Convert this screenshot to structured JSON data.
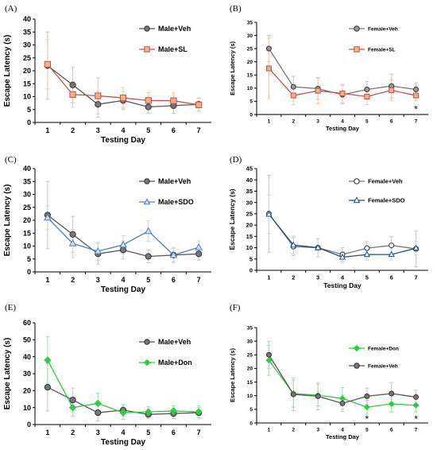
{
  "chart_data": [
    {
      "id": "A",
      "type": "line",
      "panel_label": "(A)",
      "xlabel": "Testing Day",
      "ylabel": "Escape Latency (s)",
      "x": [
        1,
        2,
        3,
        4,
        5,
        6,
        7
      ],
      "ylim": [
        0,
        40
      ],
      "yticks": [
        0,
        5,
        10,
        15,
        20,
        25,
        30,
        35,
        40
      ],
      "legend_position": "right",
      "series": [
        {
          "name": "Male+Veh",
          "marker": "circle",
          "color": "#555555",
          "fill": "#777777",
          "values": [
            22.0,
            14.5,
            7.0,
            8.5,
            6.0,
            6.5,
            7.0
          ],
          "errors": [
            13.0,
            7.0,
            5.0,
            3.5,
            2.5,
            3.0,
            2.5
          ]
        },
        {
          "name": "Male+SL",
          "marker": "square",
          "color": "#c0504d",
          "fill": "#f4b183",
          "values": [
            22.5,
            10.8,
            10.3,
            9.5,
            8.5,
            8.4,
            6.8
          ],
          "errors": [
            9.5,
            5.0,
            7.0,
            4.0,
            3.0,
            3.0,
            2.5
          ]
        }
      ],
      "annotations": []
    },
    {
      "id": "B",
      "type": "line",
      "panel_label": "(B)",
      "xlabel": "Testing Day",
      "ylabel": "Escape Latency (s)",
      "x": [
        1,
        2,
        3,
        4,
        5,
        6,
        7
      ],
      "ylim": [
        0,
        35
      ],
      "yticks": [
        0,
        5,
        10,
        15,
        20,
        25,
        30,
        35
      ],
      "legend_position": "top-right",
      "series": [
        {
          "name": "Female+Veh",
          "marker": "circle",
          "color": "#777777",
          "fill": "#999999",
          "values": [
            25.0,
            10.5,
            9.8,
            7.5,
            9.5,
            10.8,
            9.5
          ],
          "errors": [
            5.0,
            4.0,
            4.0,
            3.5,
            3.0,
            4.5,
            2.5
          ]
        },
        {
          "name": "Female+SL",
          "marker": "square",
          "color": "#c0504d",
          "fill": "#f4b183",
          "values": [
            17.5,
            7.2,
            9.0,
            8.0,
            6.8,
            9.2,
            7.2
          ],
          "errors": [
            11.5,
            3.5,
            5.0,
            3.5,
            3.0,
            4.0,
            2.0
          ]
        }
      ],
      "annotations": [
        {
          "text": "*",
          "x": 7,
          "y": 2.2
        }
      ]
    },
    {
      "id": "C",
      "type": "line",
      "panel_label": "(C)",
      "xlabel": "Testing Day",
      "ylabel": "Escape Latency (s)",
      "x": [
        1,
        2,
        3,
        4,
        5,
        6,
        7
      ],
      "ylim": [
        0,
        40
      ],
      "yticks": [
        0,
        5,
        10,
        15,
        20,
        25,
        30,
        35,
        40
      ],
      "legend_position": "right",
      "series": [
        {
          "name": "Male+Veh",
          "marker": "circle",
          "color": "#555555",
          "fill": "#777777",
          "values": [
            22.0,
            14.5,
            7.0,
            8.5,
            6.0,
            6.5,
            7.0
          ],
          "errors": [
            13.0,
            7.0,
            4.0,
            3.5,
            2.5,
            2.5,
            2.5
          ]
        },
        {
          "name": "Male+SDO",
          "marker": "triangle",
          "color": "#4f81bd",
          "fill": "#cfe0f3",
          "values": [
            21.0,
            11.0,
            8.0,
            10.5,
            15.8,
            6.5,
            9.5
          ],
          "errors": [
            4.5,
            5.5,
            3.5,
            3.5,
            4.0,
            3.0,
            2.5
          ]
        }
      ],
      "annotations": []
    },
    {
      "id": "D",
      "type": "line",
      "panel_label": "(D)",
      "xlabel": "Testing Day",
      "ylabel": "Escape Latency (s)",
      "x": [
        1,
        2,
        3,
        4,
        5,
        6,
        7
      ],
      "ylim": [
        0,
        45
      ],
      "yticks": [
        0,
        5,
        10,
        15,
        20,
        25,
        30,
        35,
        40,
        45
      ],
      "legend_position": "right",
      "series": [
        {
          "name": "Female+Veh",
          "marker": "circle",
          "color": "#777777",
          "fill": "#ffffff",
          "values": [
            25.0,
            10.5,
            10.0,
            7.0,
            9.8,
            11.0,
            9.5
          ],
          "errors": [
            17.0,
            4.0,
            4.0,
            3.0,
            3.0,
            4.0,
            8.0
          ]
        },
        {
          "name": "Female+SDO",
          "marker": "triangle",
          "color": "#1f4e79",
          "fill": "#ffffff",
          "values": [
            24.8,
            11.2,
            10.0,
            5.8,
            7.0,
            7.0,
            9.8
          ],
          "errors": [
            8.5,
            4.0,
            4.0,
            2.5,
            2.5,
            2.5,
            3.0
          ]
        }
      ],
      "annotations": []
    },
    {
      "id": "E",
      "type": "line",
      "panel_label": "(E)",
      "xlabel": "Testing Day",
      "ylabel": "Escape Latency (s)",
      "x": [
        1,
        2,
        3,
        4,
        5,
        6,
        7
      ],
      "ylim": [
        0,
        60
      ],
      "yticks": [
        0,
        10,
        20,
        30,
        40,
        50,
        60
      ],
      "legend_position": "right",
      "series": [
        {
          "name": "Male+Veh",
          "marker": "circle",
          "color": "#555555",
          "fill": "#777777",
          "values": [
            22.0,
            14.5,
            7.0,
            8.5,
            6.0,
            6.5,
            7.0
          ],
          "errors": [
            14.0,
            7.0,
            5.0,
            3.5,
            2.5,
            3.0,
            3.0
          ]
        },
        {
          "name": "Male+Don",
          "marker": "diamond",
          "color": "#2ecc40",
          "fill": "#2ecc40",
          "values": [
            38.0,
            10.0,
            12.5,
            7.0,
            7.5,
            8.0,
            7.5
          ],
          "errors": [
            14.0,
            5.0,
            6.0,
            4.0,
            3.0,
            3.0,
            3.5
          ]
        }
      ],
      "annotations": []
    },
    {
      "id": "F",
      "type": "line",
      "panel_label": "(F)",
      "xlabel": "Testing Day",
      "ylabel": "Escape Latency (s)",
      "x": [
        1,
        2,
        3,
        4,
        5,
        6,
        7
      ],
      "ylim": [
        0,
        35
      ],
      "yticks": [
        0,
        5,
        10,
        15,
        20,
        25,
        30,
        35
      ],
      "legend_position": "top-right",
      "series": [
        {
          "name": "Female+Don",
          "marker": "diamond",
          "color": "#2ecc40",
          "fill": "#2ecc40",
          "values": [
            23.0,
            10.8,
            10.2,
            9.0,
            5.8,
            7.0,
            6.5
          ],
          "errors": [
            5.5,
            5.0,
            4.0,
            4.0,
            2.5,
            3.0,
            2.5
          ]
        },
        {
          "name": "Female+Veh",
          "marker": "circle",
          "color": "#555555",
          "fill": "#777777",
          "values": [
            25.0,
            10.5,
            9.8,
            7.2,
            9.8,
            10.8,
            9.5
          ],
          "errors": [
            5.0,
            6.0,
            5.0,
            3.0,
            3.0,
            4.0,
            2.5
          ]
        }
      ],
      "annotations": [
        {
          "text": "*",
          "x": 5,
          "y": 1.8
        },
        {
          "text": "*",
          "x": 7,
          "y": 1.8
        }
      ]
    }
  ]
}
